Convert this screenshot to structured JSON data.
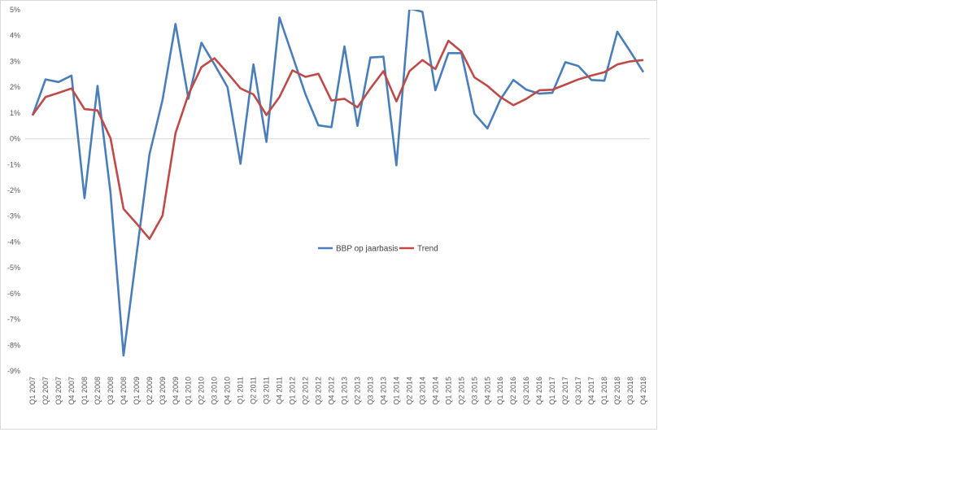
{
  "chart_data": {
    "type": "line",
    "title": "",
    "xlabel": "",
    "ylabel": "",
    "ylim": [
      -0.09,
      0.05
    ],
    "y_ticks": [
      "5%",
      "4%",
      "3%",
      "2%",
      "1%",
      "0%",
      "-1%",
      "-2%",
      "-3%",
      "-4%",
      "-5%",
      "-6%",
      "-7%",
      "-8%",
      "-9%"
    ],
    "grid": false,
    "legend_position": "center",
    "categories": [
      "Q1 2007",
      "Q2 2007",
      "Q3 2007",
      "Q4 2007",
      "Q1 2008",
      "Q2 2008",
      "Q3 2008",
      "Q4 2008",
      "Q1 2009",
      "Q2 2009",
      "Q3 2009",
      "Q4 2009",
      "Q1 2010",
      "Q2 2010",
      "Q3 2010",
      "Q4 2010",
      "Q1 2011",
      "Q2 2011",
      "Q3 2011",
      "Q4 2011",
      "Q1 2012",
      "Q2 2012",
      "Q3 2012",
      "Q4 2012",
      "Q1 2013",
      "Q2 2013",
      "Q3 2013",
      "Q4 2013",
      "Q1 2014",
      "Q2 2014",
      "Q3 2014",
      "Q4 2014",
      "Q1 2015",
      "Q2 2015",
      "Q3 2015",
      "Q4 2015",
      "Q1 2016",
      "Q2 2016",
      "Q3 2016",
      "Q4 2016",
      "Q1 2017",
      "Q2 2017",
      "Q3 2017",
      "Q4 2017",
      "Q1 2018",
      "Q2 2018",
      "Q3 2018",
      "Q4 2018"
    ],
    "series": [
      {
        "name": "BBP op jaarbasis",
        "color": "#4a7ebb",
        "values": [
          0.009,
          0.023,
          0.022,
          0.0245,
          -0.023,
          0.0205,
          -0.021,
          -0.084,
          -0.045,
          -0.006,
          0.015,
          0.0445,
          0.0155,
          0.0372,
          0.0288,
          0.02,
          -0.0097,
          0.0288,
          -0.0012,
          0.047,
          0.0322,
          0.0172,
          0.0052,
          0.0045,
          0.0358,
          0.005,
          0.0315,
          0.0318,
          -0.0103,
          0.0505,
          0.0492,
          0.0188,
          0.0332,
          0.0332,
          0.0097,
          0.004,
          0.0152,
          0.0228,
          0.019,
          0.0175,
          0.0178,
          0.0297,
          0.0282,
          0.0228,
          0.0225,
          0.0415,
          0.0338,
          0.0258
        ]
      },
      {
        "name": "Trend",
        "color": "#be4b48",
        "values": [
          0.0092,
          0.0162,
          0.0178,
          0.0195,
          0.0115,
          0.011,
          0.0002,
          -0.0272,
          -0.0328,
          -0.0388,
          -0.0298,
          0.0022,
          0.0172,
          0.0278,
          0.0312,
          0.0255,
          0.0195,
          0.0172,
          0.0092,
          0.0162,
          0.0265,
          0.024,
          0.0252,
          0.0148,
          0.0155,
          0.0122,
          0.0195,
          0.0262,
          0.0145,
          0.0262,
          0.0305,
          0.027,
          0.038,
          0.0338,
          0.0238,
          0.0205,
          0.0162,
          0.013,
          0.0155,
          0.0188,
          0.019,
          0.021,
          0.023,
          0.0245,
          0.0258,
          0.0288,
          0.03,
          0.0305
        ]
      }
    ]
  }
}
